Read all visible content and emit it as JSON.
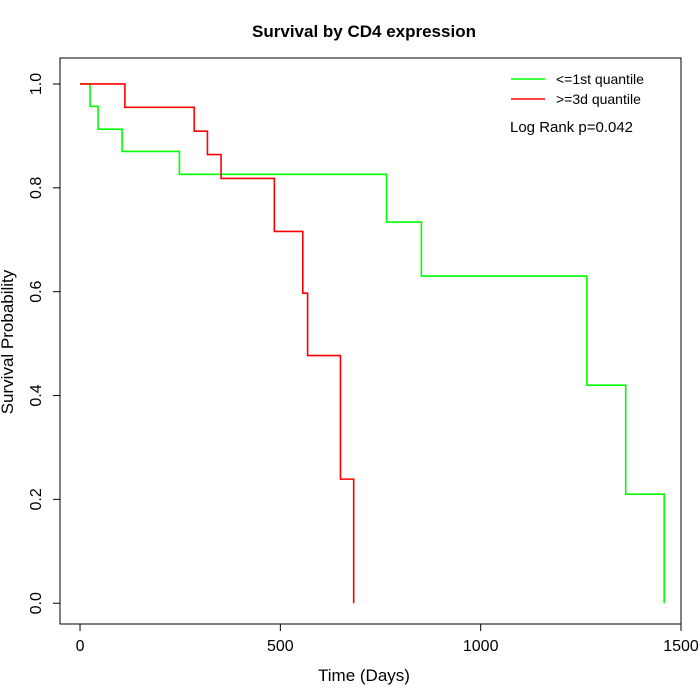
{
  "chart_data": {
    "type": "line",
    "title": "Survival by CD4 expression",
    "xlabel": "Time (Days)",
    "ylabel": "Survival Probability",
    "xlim": [
      -50,
      1500
    ],
    "ylim": [
      -0.04,
      1.05
    ],
    "x_ticks": [
      0,
      500,
      1000,
      1500
    ],
    "y_ticks": [
      0.0,
      0.2,
      0.4,
      0.6,
      0.8,
      1.0
    ],
    "x_tick_labels": [
      "0",
      "500",
      "1000",
      "1500"
    ],
    "y_tick_labels": [
      "0.0",
      "0.2",
      "0.4",
      "0.6",
      "0.8",
      "1.0"
    ],
    "grid": false,
    "legend_position": "top-right",
    "annotation": "Log Rank p=0.042",
    "series": [
      {
        "name": "<=1st quantile",
        "color": "#00ff00",
        "steps": [
          [
            0,
            1.0
          ],
          [
            25,
            0.957
          ],
          [
            45,
            0.913
          ],
          [
            105,
            0.87
          ],
          [
            248,
            0.826
          ],
          [
            765,
            0.734
          ],
          [
            852,
            0.63
          ],
          [
            1265,
            0.42
          ],
          [
            1362,
            0.21
          ],
          [
            1458,
            0.0
          ]
        ]
      },
      {
        "name": ">=3d quantile",
        "color": "#ff0000",
        "steps": [
          [
            0,
            1.0
          ],
          [
            112,
            0.955
          ],
          [
            285,
            0.909
          ],
          [
            318,
            0.864
          ],
          [
            352,
            0.818
          ],
          [
            485,
            0.716
          ],
          [
            556,
            0.597
          ],
          [
            568,
            0.477
          ],
          [
            650,
            0.239
          ],
          [
            683,
            0.0
          ]
        ]
      }
    ]
  }
}
